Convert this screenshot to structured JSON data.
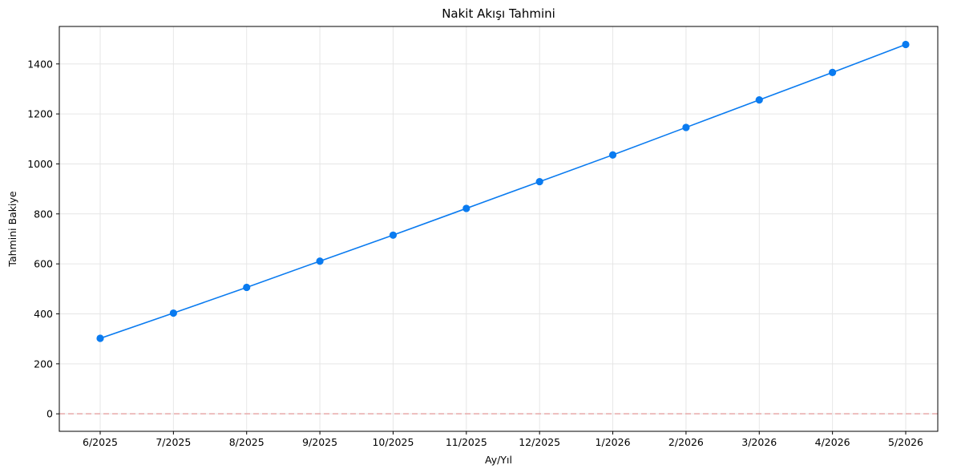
{
  "chart_data": {
    "type": "line",
    "title": "Nakit Akışı Tahmini",
    "xlabel": "Ay/Yıl",
    "ylabel": "Tahmini Bakiye",
    "categories": [
      "6/2025",
      "7/2025",
      "8/2025",
      "9/2025",
      "10/2025",
      "11/2025",
      "12/2025",
      "1/2026",
      "2/2026",
      "3/2026",
      "4/2026",
      "5/2026"
    ],
    "values": [
      302,
      403,
      506,
      611,
      715,
      822,
      929,
      1036,
      1146,
      1256,
      1366,
      1478
    ],
    "ylim": [
      -70,
      1550
    ],
    "yticks": [
      0,
      200,
      400,
      600,
      800,
      1000,
      1200,
      1400
    ],
    "grid": true,
    "reference_line": {
      "y": 0,
      "color": "#e8a9a9",
      "style": "dashed"
    },
    "series_color": "#0a7bf0"
  }
}
